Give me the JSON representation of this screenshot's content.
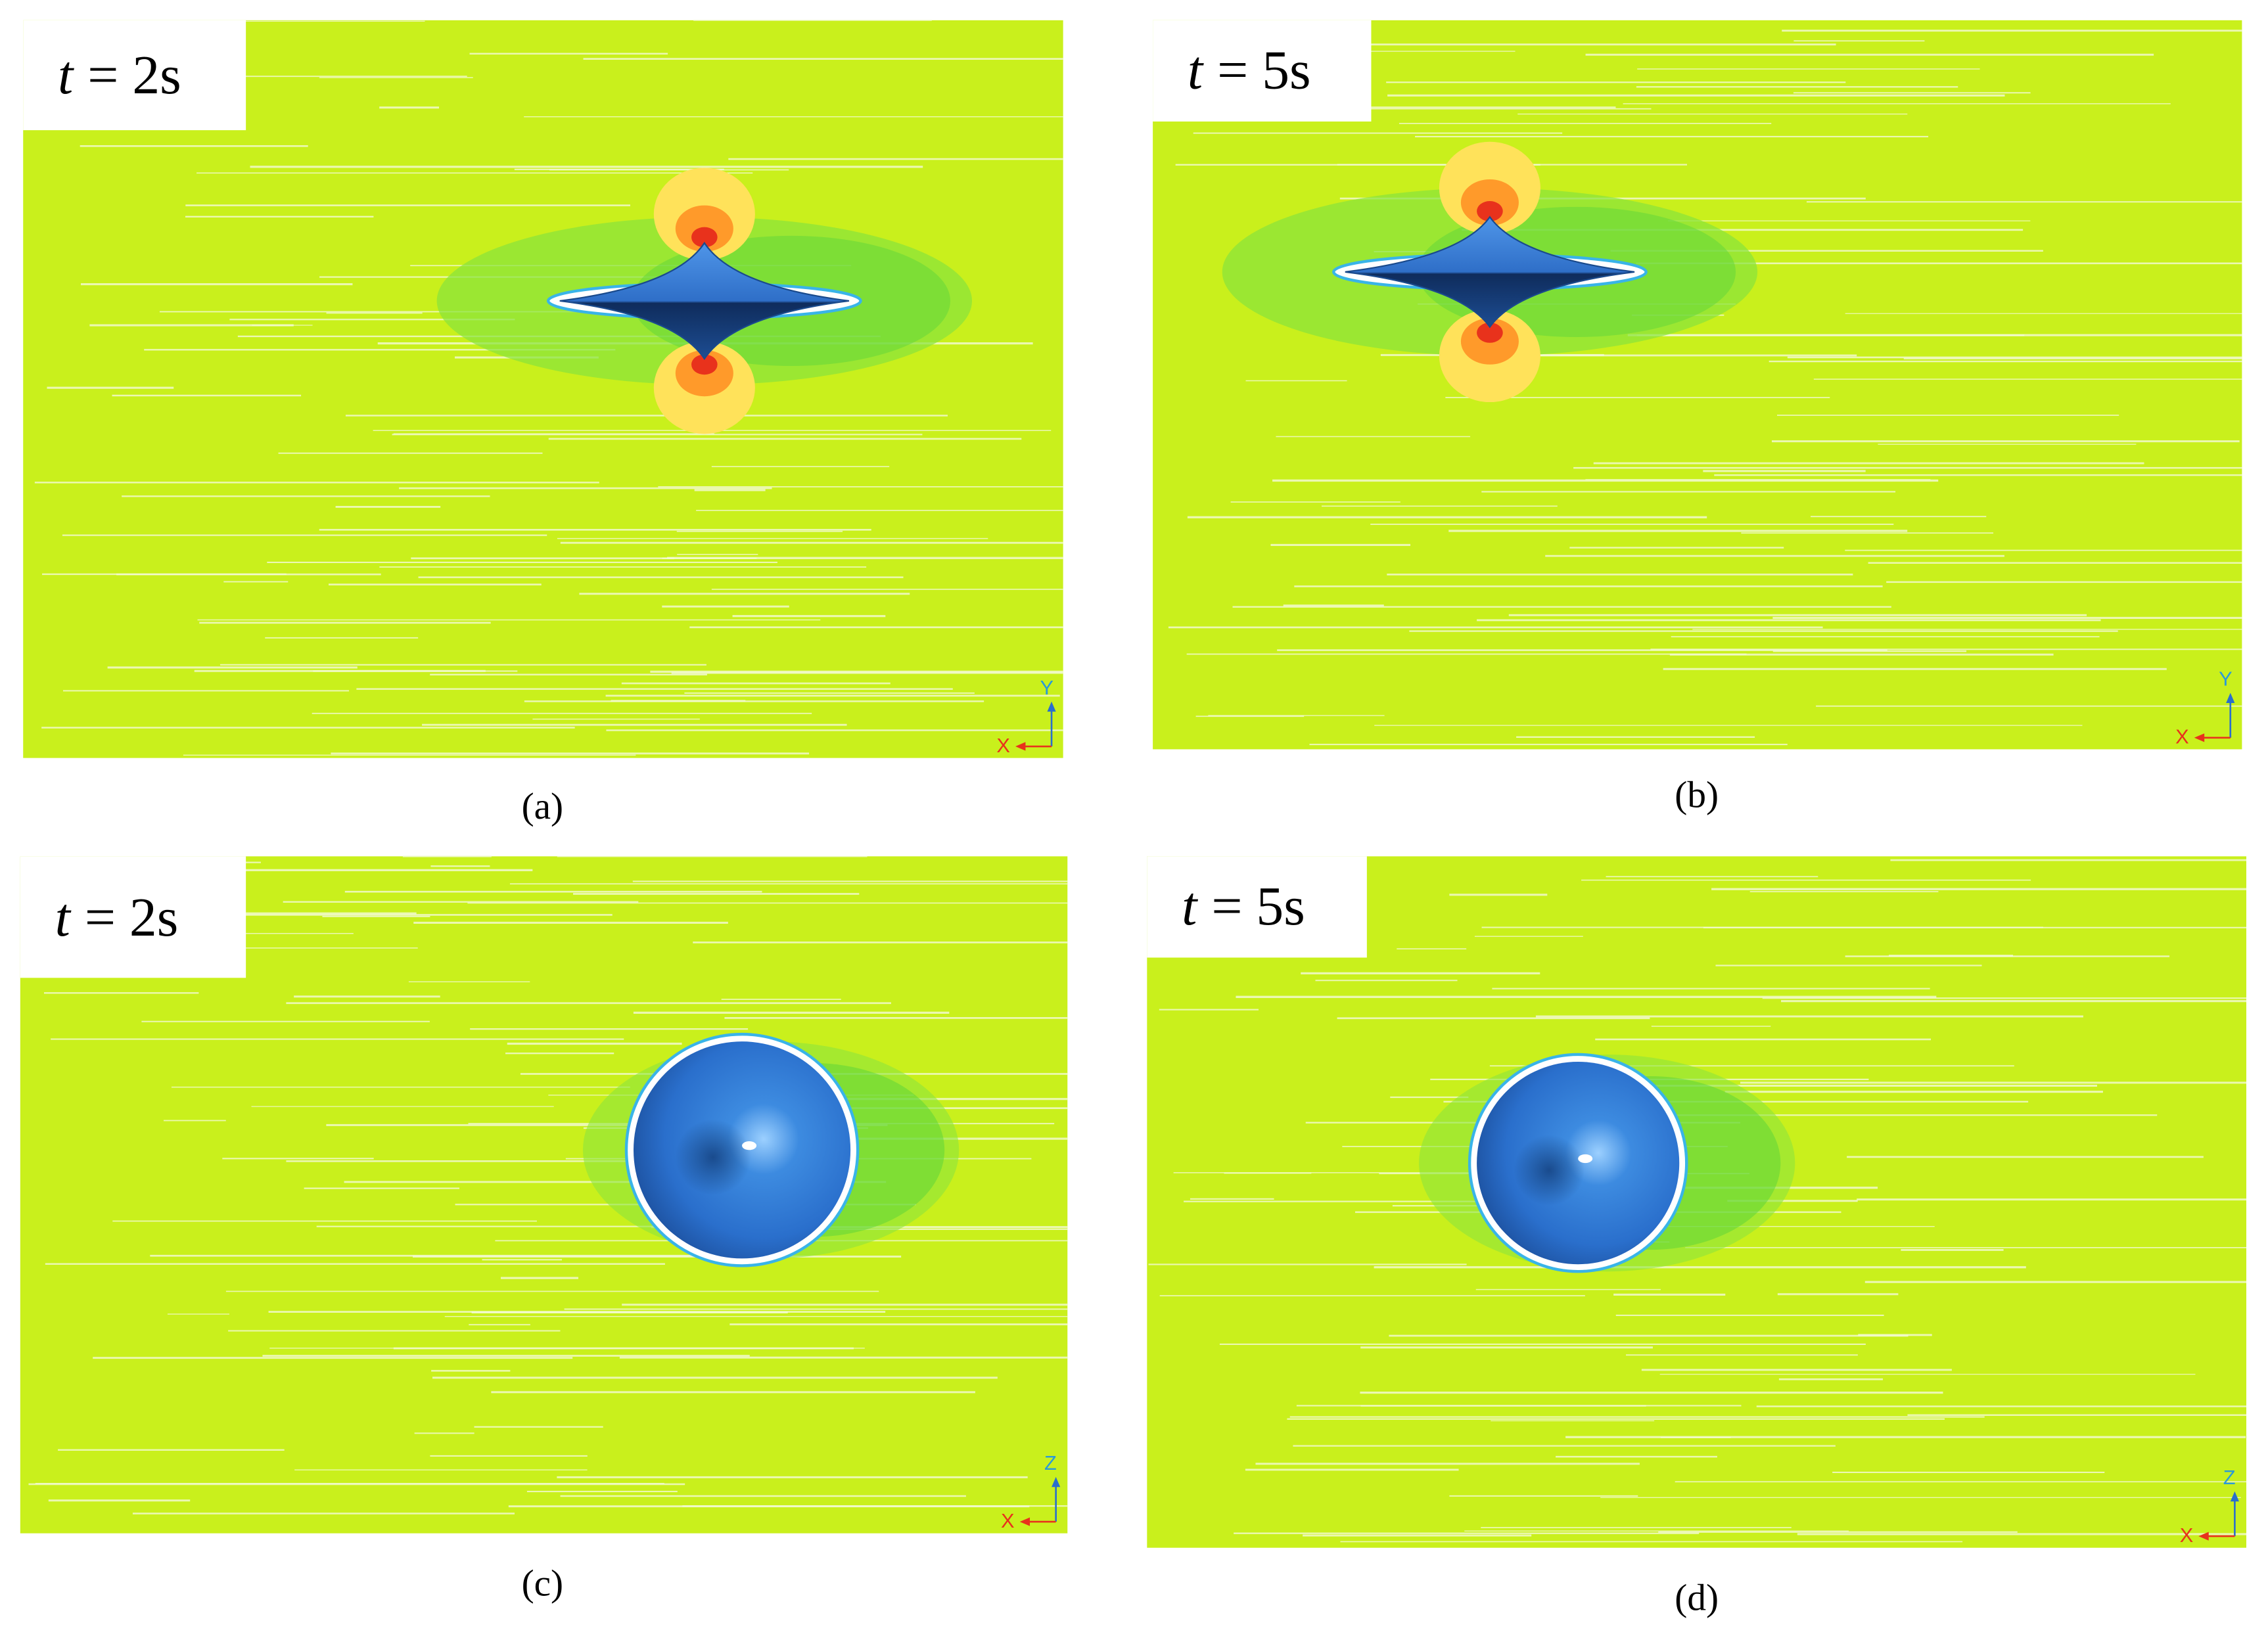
{
  "panels": [
    {
      "time_variable": "t",
      "time_value": "= 2s",
      "axis_vertical": "Y",
      "axis_horizontal": "X",
      "caption": "(a)"
    },
    {
      "time_variable": "t",
      "time_value": "= 5s",
      "axis_vertical": "Y",
      "axis_horizontal": "X",
      "caption": "(b)"
    },
    {
      "time_variable": "t",
      "time_value": "= 2s",
      "axis_vertical": "Z",
      "axis_horizontal": "X",
      "caption": "(c)"
    },
    {
      "time_variable": "t",
      "time_value": "= 5s",
      "axis_vertical": "Z",
      "axis_horizontal": "X",
      "caption": "(d)"
    }
  ]
}
